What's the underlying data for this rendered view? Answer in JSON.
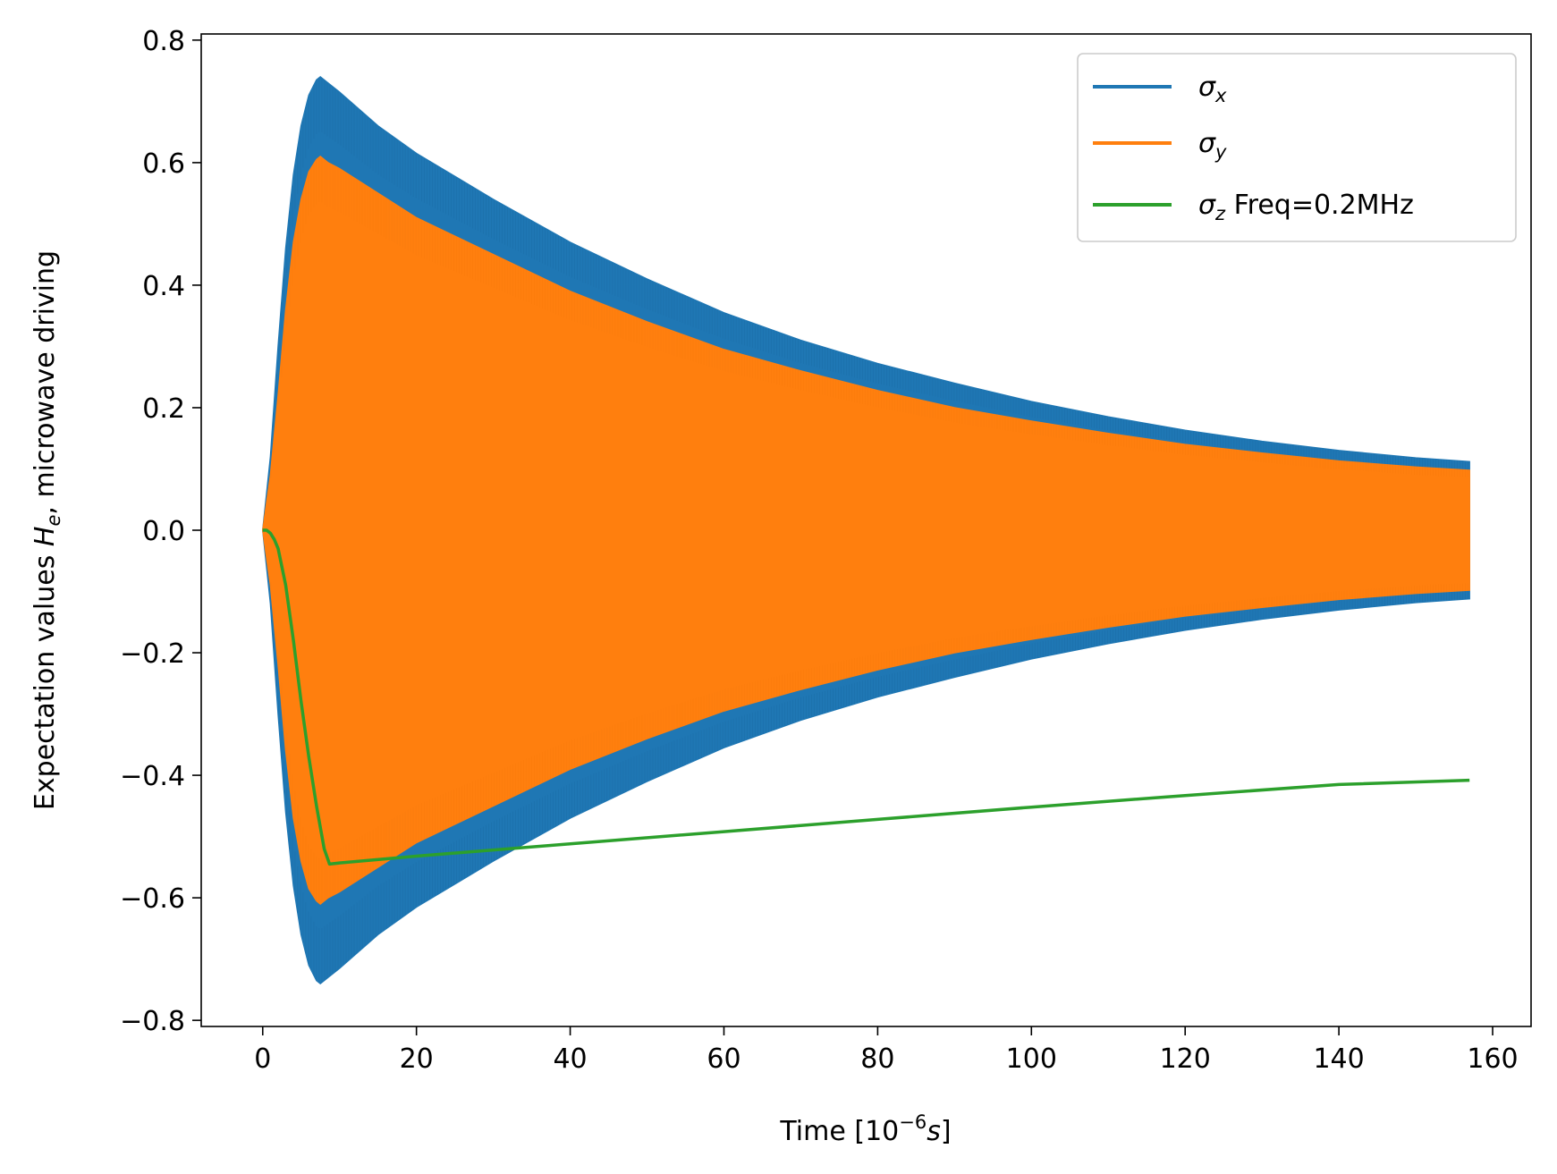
{
  "chart_data": {
    "type": "line",
    "title": "",
    "xlabel": "Time [10^-6 s]",
    "xlabel_parts": {
      "prefix": "Time [10",
      "exp": "−6",
      "unit": "s",
      "suffix": "]"
    },
    "ylabel": "Expectation values H_e, microwave driving",
    "ylabel_parts": {
      "prefix": "Expectation values ",
      "var": "H",
      "sub": "e",
      "suffix": ", microwave driving"
    },
    "xlim": [
      -8,
      165
    ],
    "ylim": [
      -0.81,
      0.81
    ],
    "xticks": [
      0,
      20,
      40,
      60,
      80,
      100,
      120,
      140,
      160
    ],
    "xtick_labels": [
      "0",
      "20",
      "40",
      "60",
      "80",
      "100",
      "120",
      "140",
      "160"
    ],
    "yticks": [
      0.8,
      0.6,
      0.4,
      0.2,
      0.0,
      -0.2,
      -0.4,
      -0.6,
      -0.8
    ],
    "ytick_labels": [
      "0.8",
      "0.6",
      "0.4",
      "0.2",
      "0.0",
      "−0.2",
      "−0.4",
      "−0.6",
      "−0.8"
    ],
    "legend_position": "top-right",
    "series": [
      {
        "name": "σx",
        "legend_symbol": "σ",
        "legend_sub": "x",
        "legend_extra": "",
        "color": "#1f77b4",
        "style": "filled-oscillation",
        "x": [
          0,
          1,
          2,
          3,
          4,
          5,
          6,
          7,
          7.5,
          8.5,
          10,
          15,
          20,
          30,
          40,
          50,
          60,
          70,
          80,
          90,
          100,
          110,
          120,
          130,
          140,
          150,
          157
        ],
        "upper": [
          0,
          0.12,
          0.3,
          0.46,
          0.58,
          0.66,
          0.71,
          0.735,
          0.74,
          0.73,
          0.715,
          0.66,
          0.615,
          0.54,
          0.47,
          0.41,
          0.355,
          0.31,
          0.272,
          0.24,
          0.21,
          0.185,
          0.163,
          0.145,
          0.13,
          0.118,
          0.112
        ],
        "lower": [
          0,
          -0.12,
          -0.3,
          -0.46,
          -0.58,
          -0.66,
          -0.71,
          -0.735,
          -0.74,
          -0.73,
          -0.715,
          -0.66,
          -0.615,
          -0.54,
          -0.47,
          -0.41,
          -0.355,
          -0.31,
          -0.272,
          -0.24,
          -0.21,
          -0.185,
          -0.163,
          -0.145,
          -0.13,
          -0.118,
          -0.112
        ]
      },
      {
        "name": "σy",
        "legend_symbol": "σ",
        "legend_sub": "y",
        "legend_extra": "",
        "color": "#ff7f0e",
        "style": "filled-oscillation",
        "x": [
          0,
          1,
          2,
          3,
          4,
          5,
          6,
          7,
          7.5,
          8.5,
          10,
          15,
          20,
          30,
          40,
          50,
          60,
          70,
          80,
          90,
          100,
          110,
          120,
          130,
          140,
          150,
          157
        ],
        "upper": [
          0,
          0.09,
          0.22,
          0.36,
          0.47,
          0.54,
          0.585,
          0.605,
          0.61,
          0.6,
          0.59,
          0.55,
          0.51,
          0.45,
          0.39,
          0.34,
          0.295,
          0.26,
          0.228,
          0.2,
          0.178,
          0.158,
          0.14,
          0.126,
          0.113,
          0.103,
          0.098
        ],
        "lower": [
          0,
          -0.09,
          -0.22,
          -0.36,
          -0.47,
          -0.54,
          -0.585,
          -0.605,
          -0.61,
          -0.6,
          -0.59,
          -0.55,
          -0.51,
          -0.45,
          -0.39,
          -0.34,
          -0.295,
          -0.26,
          -0.228,
          -0.2,
          -0.178,
          -0.158,
          -0.14,
          -0.126,
          -0.113,
          -0.103,
          -0.098
        ]
      },
      {
        "name": "σz Freq=0.2MHz",
        "legend_symbol": "σ",
        "legend_sub": "z",
        "legend_extra": " Freq=0.2MHz",
        "color": "#2ca02c",
        "style": "line",
        "x": [
          0,
          0.5,
          1,
          1.5,
          2,
          3,
          4,
          5,
          6,
          7,
          8,
          8.7,
          10,
          20,
          40,
          60,
          80,
          100,
          120,
          140,
          157
        ],
        "y": [
          0,
          0.0,
          -0.005,
          -0.015,
          -0.03,
          -0.09,
          -0.18,
          -0.28,
          -0.37,
          -0.45,
          -0.52,
          -0.545,
          -0.543,
          -0.532,
          -0.512,
          -0.492,
          -0.472,
          -0.452,
          -0.433,
          -0.415,
          -0.408
        ]
      }
    ]
  }
}
